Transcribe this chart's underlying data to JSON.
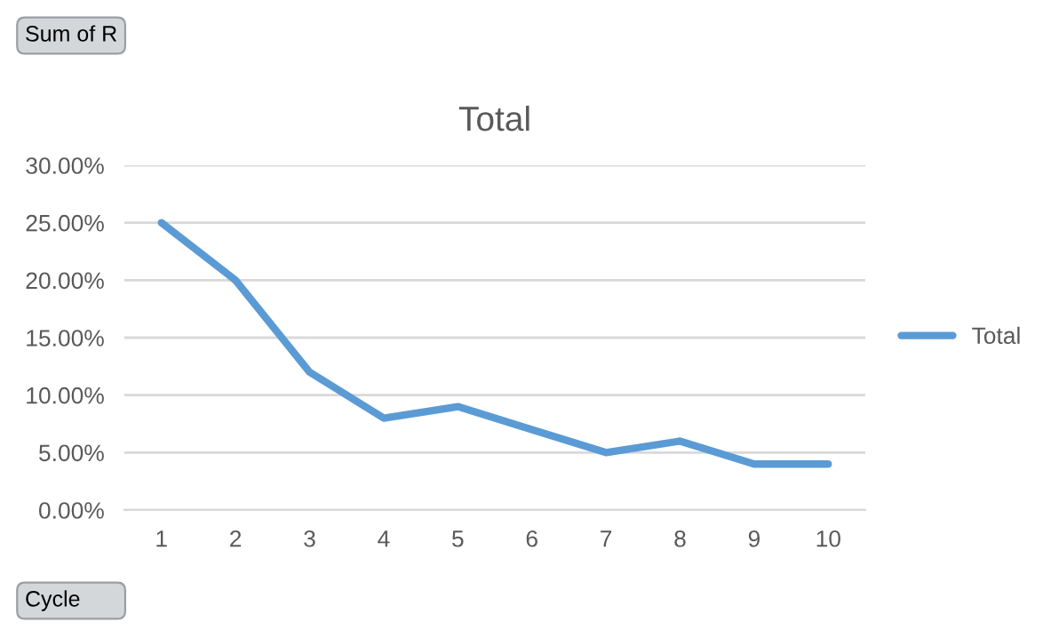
{
  "chart_data": {
    "type": "line",
    "title": "Total",
    "categories": [
      "1",
      "2",
      "3",
      "4",
      "5",
      "6",
      "7",
      "8",
      "9",
      "10"
    ],
    "series": [
      {
        "name": "Total",
        "color": "#5b9bd5",
        "values": [
          0.25,
          0.2,
          0.12,
          0.08,
          0.09,
          0.07,
          0.05,
          0.06,
          0.04,
          0.04
        ]
      }
    ],
    "ylim": [
      0,
      0.3
    ],
    "yticks": [
      {
        "value": 0,
        "label": "0.00%"
      },
      {
        "value": 0.05,
        "label": "5.00%"
      },
      {
        "value": 0.1,
        "label": "10.00%"
      },
      {
        "value": 0.15,
        "label": "15.00%"
      },
      {
        "value": 0.2,
        "label": "20.00%"
      },
      {
        "value": 0.25,
        "label": "25.00%"
      },
      {
        "value": 0.3,
        "label": "30.00%"
      }
    ],
    "grid": "y",
    "legend": "right",
    "marker": "none",
    "line_style": "solid",
    "annotations": [
      "Sum of R",
      "Cycle"
    ]
  }
}
